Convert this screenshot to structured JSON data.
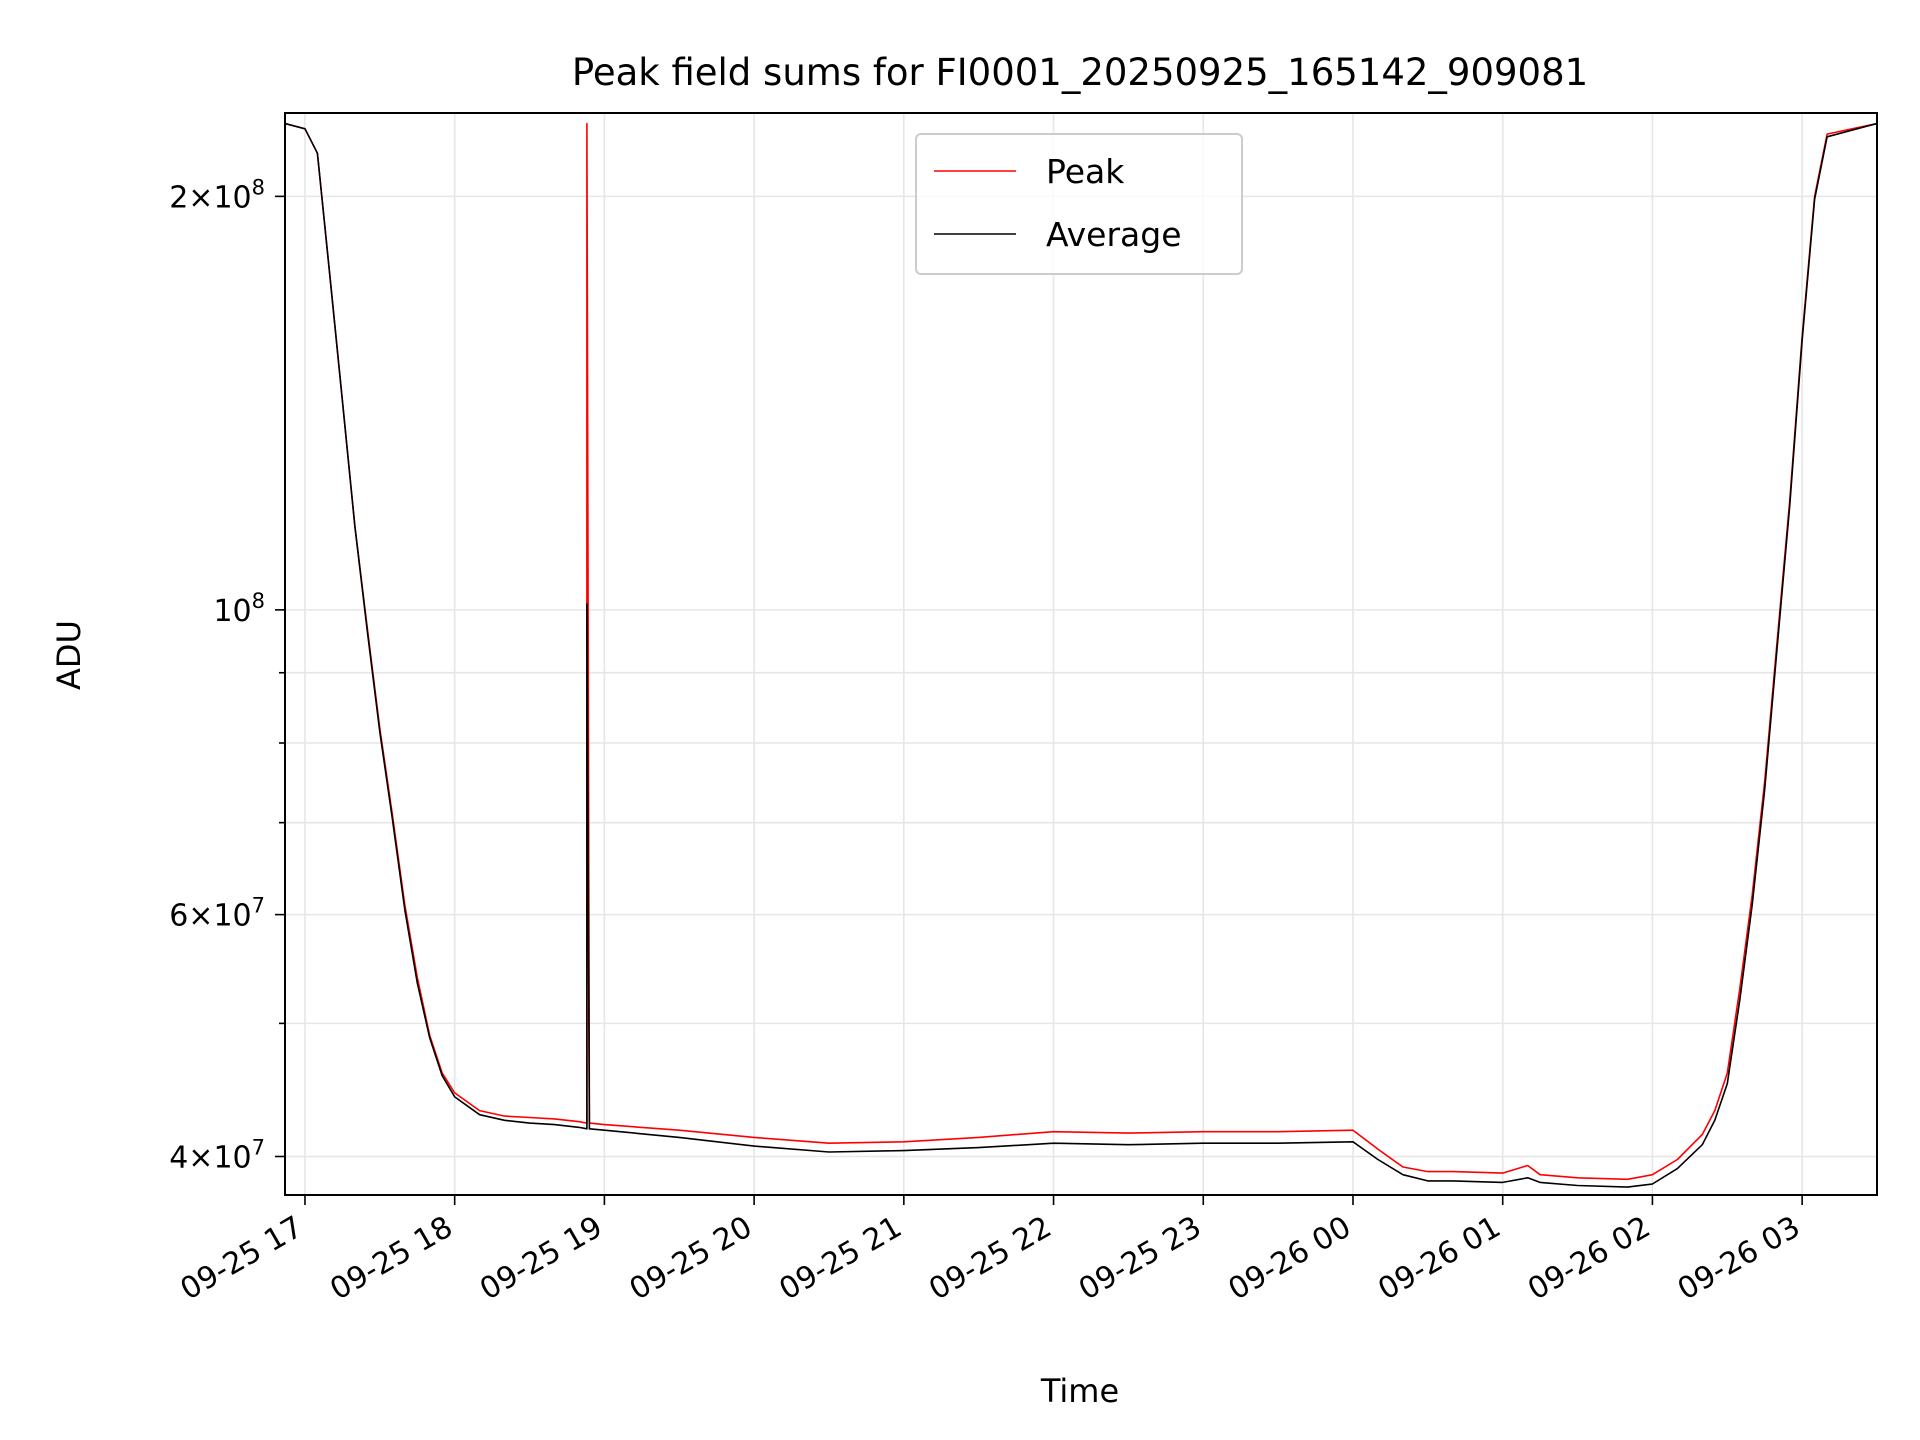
{
  "chart_data": {
    "type": "line",
    "title": "Peak field sums for FI0001_20250925_165142_909081",
    "xlabel": "Time",
    "ylabel": "ADU",
    "x_type": "datetime",
    "xlim": [
      "2025-09-25 16:52",
      "2025-09-26 03:30"
    ],
    "y_scale": "log",
    "ylim": [
      37500000,
      230000000
    ],
    "grid": true,
    "legend": "upper-center",
    "x_ticks": [
      {
        "t": "2025-09-25 17:00",
        "label": "09-25 17"
      },
      {
        "t": "2025-09-25 18:00",
        "label": "09-25 18"
      },
      {
        "t": "2025-09-25 19:00",
        "label": "09-25 19"
      },
      {
        "t": "2025-09-25 20:00",
        "label": "09-25 20"
      },
      {
        "t": "2025-09-25 21:00",
        "label": "09-25 21"
      },
      {
        "t": "2025-09-25 22:00",
        "label": "09-25 22"
      },
      {
        "t": "2025-09-25 23:00",
        "label": "09-25 23"
      },
      {
        "t": "2025-09-26 00:00",
        "label": "09-26 00"
      },
      {
        "t": "2025-09-26 01:00",
        "label": "09-26 01"
      },
      {
        "t": "2025-09-26 02:00",
        "label": "09-26 02"
      },
      {
        "t": "2025-09-26 03:00",
        "label": "09-26 03"
      }
    ],
    "y_ticks_major": [
      {
        "v": 40000000,
        "mant": "4",
        "exp": "7"
      },
      {
        "v": 60000000,
        "mant": "6",
        "exp": "7"
      },
      {
        "v": 100000000,
        "mant": "",
        "exp": "8"
      },
      {
        "v": 200000000,
        "mant": "2",
        "exp": "8"
      }
    ],
    "y_ticks_minor": [
      50000000,
      70000000,
      80000000,
      90000000
    ],
    "times_symbol": "×",
    "series": [
      {
        "name": "Peak",
        "color": "#ff0000",
        "x": [
          "2025-09-25 16:52",
          "2025-09-25 17:00",
          "2025-09-25 17:05",
          "2025-09-25 17:10",
          "2025-09-25 17:15",
          "2025-09-25 17:20",
          "2025-09-25 17:25",
          "2025-09-25 17:30",
          "2025-09-25 17:35",
          "2025-09-25 17:40",
          "2025-09-25 17:45",
          "2025-09-25 17:50",
          "2025-09-25 17:55",
          "2025-09-25 18:00",
          "2025-09-25 18:10",
          "2025-09-25 18:20",
          "2025-09-25 18:30",
          "2025-09-25 18:40",
          "2025-09-25 18:50",
          "2025-09-25 18:53",
          "2025-09-25 18:53",
          "2025-09-25 18:54",
          "2025-09-25 19:00",
          "2025-09-25 19:30",
          "2025-09-25 20:00",
          "2025-09-25 20:30",
          "2025-09-25 21:00",
          "2025-09-25 21:30",
          "2025-09-25 22:00",
          "2025-09-25 22:30",
          "2025-09-25 23:00",
          "2025-09-25 23:30",
          "2025-09-26 00:00",
          "2025-09-26 00:10",
          "2025-09-26 00:20",
          "2025-09-26 00:30",
          "2025-09-26 00:40",
          "2025-09-26 01:00",
          "2025-09-26 01:10",
          "2025-09-26 01:15",
          "2025-09-26 01:30",
          "2025-09-26 01:50",
          "2025-09-26 02:00",
          "2025-09-26 02:10",
          "2025-09-26 02:20",
          "2025-09-26 02:25",
          "2025-09-26 02:30",
          "2025-09-26 02:35",
          "2025-09-26 02:40",
          "2025-09-26 02:45",
          "2025-09-26 02:50",
          "2025-09-26 02:55",
          "2025-09-26 03:00",
          "2025-09-26 03:05",
          "2025-09-26 03:10",
          "2025-09-26 03:30"
        ],
        "y": [
          226000000,
          224000000,
          215000000,
          175000000,
          142000000,
          115000000,
          97000000,
          82000000,
          71000000,
          61000000,
          54000000,
          49000000,
          46000000,
          44500000,
          43200000,
          42800000,
          42700000,
          42600000,
          42400000,
          42300000,
          226000000,
          42300000,
          42200000,
          41800000,
          41300000,
          40900000,
          41000000,
          41300000,
          41700000,
          41600000,
          41700000,
          41700000,
          41800000,
          40500000,
          39300000,
          39000000,
          39000000,
          38900000,
          39400000,
          38800000,
          38600000,
          38500000,
          38800000,
          39800000,
          41500000,
          43200000,
          46000000,
          53000000,
          62000000,
          75000000,
          95000000,
          120000000,
          158000000,
          200000000,
          222000000,
          226000000
        ]
      },
      {
        "name": "Average",
        "color": "#000000",
        "x": [
          "2025-09-25 16:52",
          "2025-09-25 17:00",
          "2025-09-25 17:05",
          "2025-09-25 17:10",
          "2025-09-25 17:15",
          "2025-09-25 17:20",
          "2025-09-25 17:25",
          "2025-09-25 17:30",
          "2025-09-25 17:35",
          "2025-09-25 17:40",
          "2025-09-25 17:45",
          "2025-09-25 17:50",
          "2025-09-25 17:55",
          "2025-09-25 18:00",
          "2025-09-25 18:10",
          "2025-09-25 18:20",
          "2025-09-25 18:30",
          "2025-09-25 18:40",
          "2025-09-25 18:50",
          "2025-09-25 18:53",
          "2025-09-25 18:53",
          "2025-09-25 18:54",
          "2025-09-25 19:00",
          "2025-09-25 19:30",
          "2025-09-25 20:00",
          "2025-09-25 20:30",
          "2025-09-25 21:00",
          "2025-09-25 21:30",
          "2025-09-25 22:00",
          "2025-09-25 22:30",
          "2025-09-25 23:00",
          "2025-09-25 23:30",
          "2025-09-26 00:00",
          "2025-09-26 00:10",
          "2025-09-26 00:20",
          "2025-09-26 00:30",
          "2025-09-26 00:40",
          "2025-09-26 01:00",
          "2025-09-26 01:10",
          "2025-09-26 01:15",
          "2025-09-26 01:30",
          "2025-09-26 01:50",
          "2025-09-26 02:00",
          "2025-09-26 02:10",
          "2025-09-26 02:20",
          "2025-09-26 02:25",
          "2025-09-26 02:30",
          "2025-09-26 02:35",
          "2025-09-26 02:40",
          "2025-09-26 02:45",
          "2025-09-26 02:50",
          "2025-09-26 02:55",
          "2025-09-26 03:00",
          "2025-09-26 03:05",
          "2025-09-26 03:10",
          "2025-09-26 03:30"
        ],
        "y": [
          226000000,
          224000000,
          215000000,
          175000000,
          142000000,
          115000000,
          96500000,
          81500000,
          70500000,
          60500000,
          53500000,
          48800000,
          45800000,
          44200000,
          42900000,
          42500000,
          42300000,
          42200000,
          42000000,
          41900000,
          101000000,
          41900000,
          41800000,
          41300000,
          40700000,
          40300000,
          40400000,
          40600000,
          40900000,
          40800000,
          40900000,
          40900000,
          41000000,
          39800000,
          38800000,
          38400000,
          38400000,
          38300000,
          38600000,
          38300000,
          38100000,
          38000000,
          38200000,
          39200000,
          40800000,
          42500000,
          45200000,
          52000000,
          61000000,
          74000000,
          94000000,
          119000000,
          157000000,
          199000000,
          221000000,
          226000000
        ]
      }
    ]
  }
}
